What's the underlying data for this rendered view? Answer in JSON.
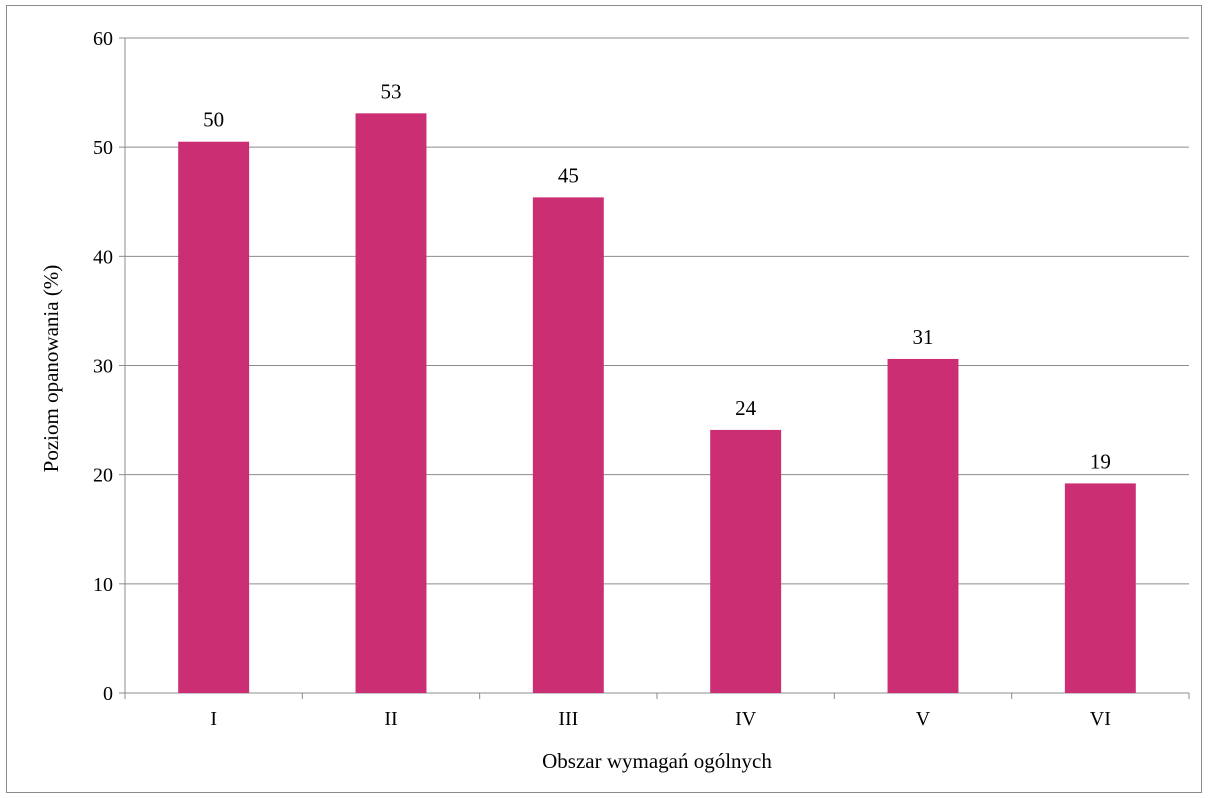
{
  "chart_data": {
    "type": "bar",
    "categories": [
      "I",
      "II",
      "III",
      "IV",
      "V",
      "VI"
    ],
    "values": [
      50.5,
      53.1,
      45.4,
      24.1,
      30.6,
      19.2
    ],
    "data_labels": [
      "50",
      "53",
      "45",
      "24",
      "31",
      "19"
    ],
    "xlabel": "Obszar wymagań ogólnych",
    "ylabel": "Poziom opanowania (%)",
    "ylim": [
      0,
      60
    ],
    "yticks": [
      0,
      10,
      20,
      30,
      40,
      50,
      60
    ],
    "grid": true,
    "legend": "none",
    "bar_color": "#CC2E74"
  }
}
